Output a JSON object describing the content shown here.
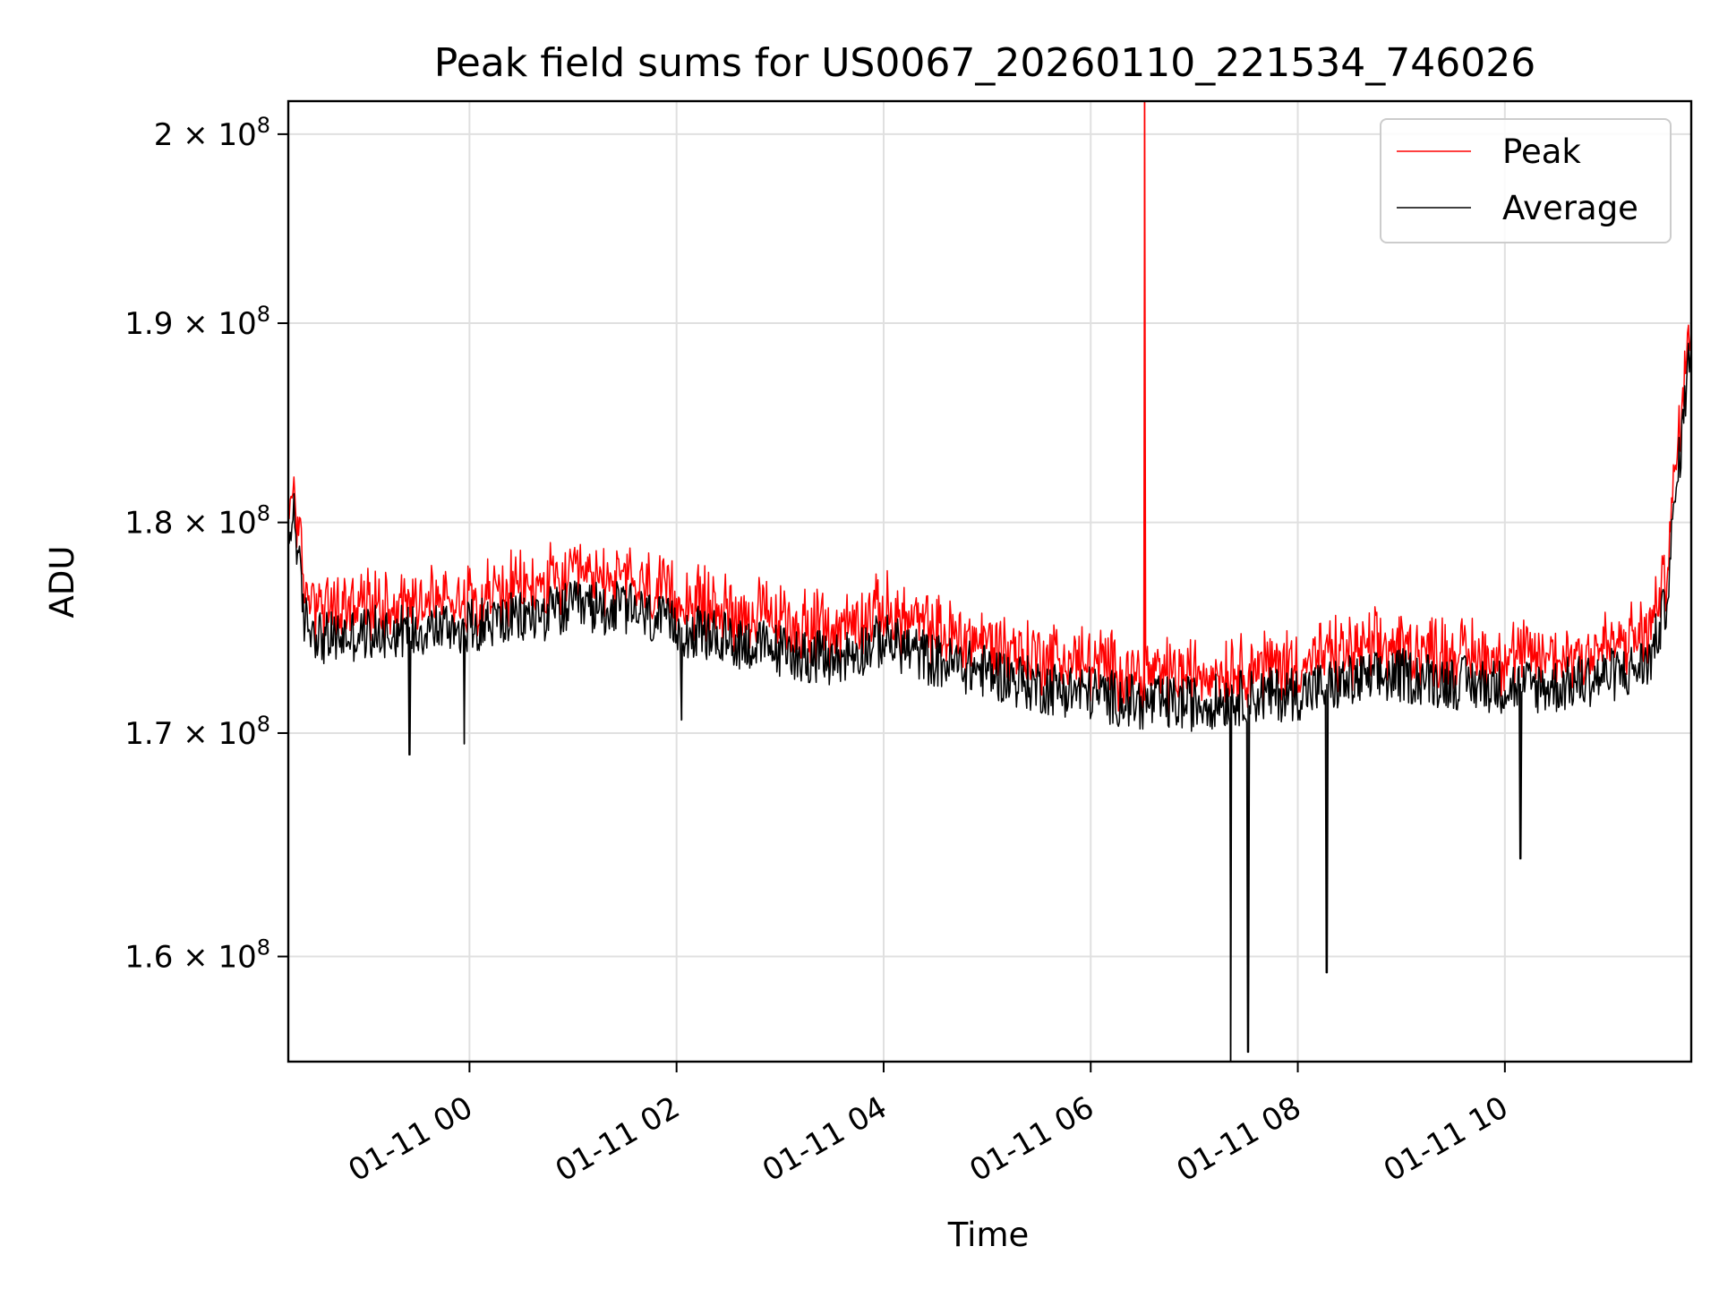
{
  "chart_data": {
    "type": "line",
    "title": "Peak field sums for US0067_20260110_221534_746026",
    "xlabel": "Time",
    "ylabel": "ADU",
    "yscale": "log",
    "grid": true,
    "legend_position": "top-right",
    "xlim_hours": [
      -1.75,
      11.8
    ],
    "ylim": [
      155500000,
      201800000
    ],
    "x_ticks": [
      {
        "hours": 0,
        "label": "01-11 00"
      },
      {
        "hours": 2,
        "label": "01-11 02"
      },
      {
        "hours": 4,
        "label": "01-11 04"
      },
      {
        "hours": 6,
        "label": "01-11 06"
      },
      {
        "hours": 8,
        "label": "01-11 08"
      },
      {
        "hours": 10,
        "label": "01-11 10"
      }
    ],
    "y_ticks": [
      {
        "value": 160000000,
        "base": "1.6",
        "exp": "8"
      },
      {
        "value": 170000000,
        "base": "1.7",
        "exp": "8"
      },
      {
        "value": 180000000,
        "base": "1.8",
        "exp": "8"
      },
      {
        "value": 190000000,
        "base": "1.9",
        "exp": "8"
      },
      {
        "value": 200000000,
        "base": "2",
        "exp": "8"
      }
    ],
    "series": [
      {
        "name": "Peak",
        "color": "#ff0000",
        "offset": 600000,
        "noise": 800000
      },
      {
        "name": "Average",
        "color": "#000000",
        "offset": 0,
        "noise": 1300000
      }
    ],
    "baseline": {
      "hours": [
        -1.75,
        -1.7,
        -1.6,
        -1.4,
        -1.0,
        0.0,
        0.5,
        1.0,
        1.5,
        2.0,
        2.5,
        3.0,
        3.5,
        4.0,
        4.5,
        5.0,
        5.5,
        6.0,
        6.5,
        7.0,
        7.5,
        8.0,
        8.5,
        9.0,
        9.5,
        10.0,
        10.5,
        11.0,
        11.2,
        11.4,
        11.55,
        11.7,
        11.8
      ],
      "values": [
        178500000,
        181000000,
        175500000,
        174500000,
        174800000,
        175200000,
        175500000,
        176000000,
        176000000,
        175000000,
        174500000,
        174000000,
        173500000,
        174500000,
        173500000,
        173000000,
        172300000,
        172000000,
        171500000,
        171500000,
        171800000,
        172000000,
        172500000,
        172800000,
        172500000,
        172300000,
        172300000,
        172800000,
        173000000,
        173500000,
        176000000,
        184000000,
        189500000
      ]
    },
    "spikes": [
      {
        "series": "Peak",
        "hours": 6.52,
        "value": 201800000
      },
      {
        "series": "Average",
        "hours": 7.35,
        "value": 155500000
      },
      {
        "series": "Average",
        "hours": 7.52,
        "value": 155900000
      },
      {
        "series": "Average",
        "hours": 8.28,
        "value": 159300000
      },
      {
        "series": "Average",
        "hours": 10.15,
        "value": 164300000
      },
      {
        "series": "Average",
        "hours": -0.05,
        "value": 169500000
      },
      {
        "series": "Average",
        "hours": -0.58,
        "value": 169000000
      },
      {
        "series": "Average",
        "hours": 2.05,
        "value": 170600000
      }
    ]
  }
}
